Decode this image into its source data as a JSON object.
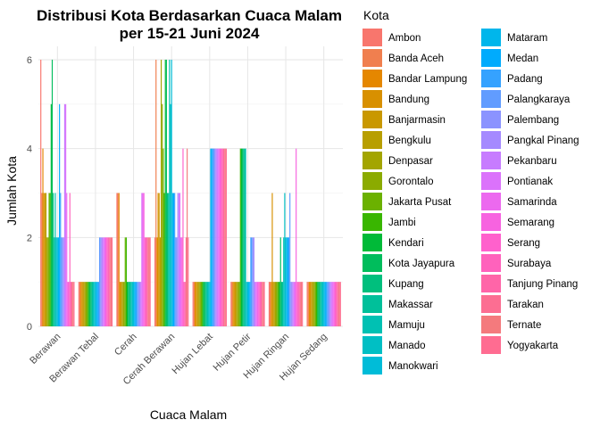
{
  "chart_data": {
    "type": "bar",
    "title": "Distribusi Kota Berdasarkan Cuaca Malam",
    "subtitle": "per 15-21 Juni 2024",
    "xlabel": "Cuaca Malam",
    "ylabel": "Jumlah Kota",
    "legend_title": "Kota",
    "legend_position": "right",
    "grid": true,
    "ylim": [
      0,
      6
    ],
    "yticks": [
      0,
      2,
      4,
      6
    ],
    "categories": [
      "Berawan",
      "Berawan Tebal",
      "Cerah",
      "Cerah Berawan",
      "Hujan Lebat",
      "Hujan Petir",
      "Hujan Ringan",
      "Hujan Sedang"
    ],
    "series": [
      {
        "name": "Ambon",
        "color": "#F8766D"
      },
      {
        "name": "Banda Aceh",
        "color": "#F07F4F"
      },
      {
        "name": "Bandar Lampung",
        "color": "#E58700"
      },
      {
        "name": "Bandung",
        "color": "#D89000"
      },
      {
        "name": "Banjarmasin",
        "color": "#C99800"
      },
      {
        "name": "Bengkulu",
        "color": "#B89F00"
      },
      {
        "name": "Denpasar",
        "color": "#A3A500"
      },
      {
        "name": "Gorontalo",
        "color": "#8BAB00"
      },
      {
        "name": "Jakarta Pusat",
        "color": "#6BB100"
      },
      {
        "name": "Jambi",
        "color": "#39B600"
      },
      {
        "name": "Kendari",
        "color": "#00BA38"
      },
      {
        "name": "Kota Jayapura",
        "color": "#00BD5C"
      },
      {
        "name": "Kupang",
        "color": "#00BF7D"
      },
      {
        "name": "Makassar",
        "color": "#00C09A"
      },
      {
        "name": "Mamuju",
        "color": "#00C1B3"
      },
      {
        "name": "Manado",
        "color": "#00BFC4"
      },
      {
        "name": "Manokwari",
        "color": "#00BCD8"
      },
      {
        "name": "Mataram",
        "color": "#00B6EB"
      },
      {
        "name": "Medan",
        "color": "#00ABFD"
      },
      {
        "name": "Padang",
        "color": "#35A2FF"
      },
      {
        "name": "Palangkaraya",
        "color": "#619CFF"
      },
      {
        "name": "Palembang",
        "color": "#8B93FF"
      },
      {
        "name": "Pangkal Pinang",
        "color": "#A58AFF"
      },
      {
        "name": "Pekanbaru",
        "color": "#C77CFF"
      },
      {
        "name": "Pontianak",
        "color": "#DB72FB"
      },
      {
        "name": "Samarinda",
        "color": "#EC69EF"
      },
      {
        "name": "Semarang",
        "color": "#F763E0"
      },
      {
        "name": "Serang",
        "color": "#FF61CC"
      },
      {
        "name": "Surabaya",
        "color": "#FF62BC"
      },
      {
        "name": "Tanjung Pinang",
        "color": "#FF65A8"
      },
      {
        "name": "Tarakan",
        "color": "#FC6E92"
      },
      {
        "name": "Ternate",
        "color": "#F47A7D"
      },
      {
        "name": "Yogyakarta",
        "color": "#FF6C91"
      }
    ],
    "bars": [
      [
        6,
        3,
        4,
        3,
        3,
        3,
        2,
        2,
        3,
        3,
        5,
        6,
        3,
        2,
        3,
        2,
        2,
        2,
        5,
        3,
        2,
        2,
        2,
        5,
        5,
        3,
        1,
        1,
        3,
        1,
        1,
        1,
        1
      ],
      [
        1,
        1,
        1,
        1,
        1,
        1,
        1,
        1,
        1,
        1,
        1,
        1,
        1,
        1,
        1,
        1,
        1,
        1,
        1,
        1,
        2,
        2,
        2,
        2,
        2,
        2,
        2,
        2,
        2,
        2,
        2,
        2,
        2
      ],
      [
        3,
        3,
        3,
        1,
        1,
        1,
        1,
        1,
        2,
        2,
        1,
        1,
        1,
        1,
        1,
        1,
        1,
        1,
        1,
        1,
        1,
        1,
        1,
        1,
        3,
        3,
        3,
        2,
        2,
        2,
        2,
        2,
        2
      ],
      [
        2,
        6,
        2,
        3,
        3,
        2,
        6,
        5,
        4,
        3,
        6,
        6,
        3,
        3,
        6,
        5,
        6,
        3,
        3,
        3,
        2,
        2,
        3,
        3,
        3,
        2,
        2,
        4,
        1,
        1,
        2,
        4,
        2
      ],
      [
        1,
        1,
        1,
        1,
        1,
        1,
        1,
        1,
        1,
        1,
        1,
        1,
        1,
        1,
        1,
        1,
        1,
        4,
        4,
        4,
        4,
        4,
        4,
        4,
        4,
        4,
        4,
        4,
        4,
        4,
        4,
        4,
        4
      ],
      [
        1,
        1,
        1,
        1,
        1,
        1,
        1,
        1,
        1,
        4,
        4,
        4,
        4,
        4,
        4,
        1,
        1,
        1,
        1,
        2,
        2,
        2,
        2,
        1,
        1,
        1,
        1,
        1,
        1,
        1,
        1,
        1,
        1
      ],
      [
        1,
        1,
        1,
        3,
        1,
        1,
        1,
        1,
        1,
        1,
        1,
        2,
        1,
        1,
        2,
        3,
        2,
        2,
        2,
        2,
        3,
        1,
        1,
        1,
        1,
        1,
        4,
        1,
        1,
        1,
        1,
        1,
        1
      ],
      [
        1,
        1,
        1,
        1,
        1,
        1,
        1,
        1,
        1,
        1,
        1,
        1,
        1,
        1,
        1,
        1,
        1,
        1,
        1,
        1,
        1,
        1,
        1,
        1,
        1,
        1,
        1,
        1,
        1,
        1,
        1,
        1,
        1
      ]
    ]
  }
}
